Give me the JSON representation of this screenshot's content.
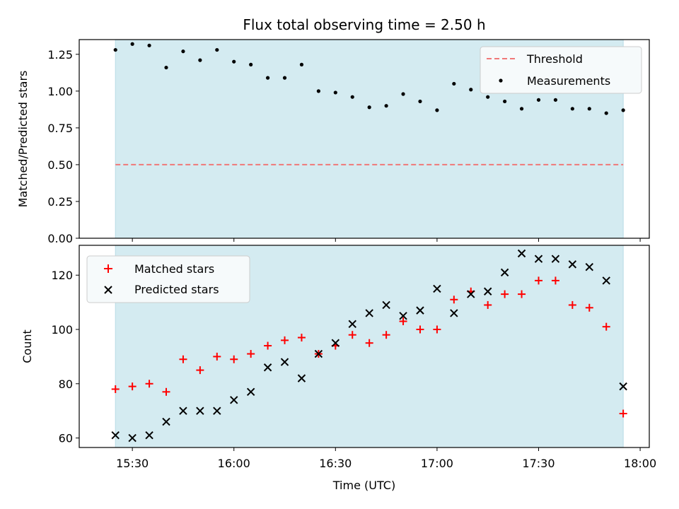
{
  "chart_data": {
    "title": "Flux total observing time = 2.50 h",
    "shade_color": "#d4ebf1",
    "x_tick_labels": [
      "15:30",
      "16:00",
      "16:30",
      "17:00",
      "17:30",
      "18:00"
    ],
    "x_tick_minutes": [
      930,
      960,
      990,
      1020,
      1050,
      1080
    ],
    "xlim": [
      914.3,
      1082.7
    ],
    "xlabel": "Time (UTC)",
    "shade_range": [
      "15:25",
      "17:55"
    ],
    "times": [
      "15:25",
      "15:30",
      "15:35",
      "15:40",
      "15:45",
      "15:50",
      "15:55",
      "16:00",
      "16:05",
      "16:10",
      "16:15",
      "16:20",
      "16:25",
      "16:30",
      "16:35",
      "16:40",
      "16:45",
      "16:50",
      "16:55",
      "17:00",
      "17:05",
      "17:10",
      "17:15",
      "17:20",
      "17:25",
      "17:30",
      "17:35",
      "17:40",
      "17:45",
      "17:50",
      "17:55"
    ],
    "top": {
      "type": "scatter",
      "ylabel": "Matched/Predicted stars",
      "ylim": [
        0,
        1.35
      ],
      "y_ticks": [
        "0.00",
        "0.25",
        "0.50",
        "0.75",
        "1.00",
        "1.25"
      ],
      "y_tick_values": [
        0,
        0.25,
        0.5,
        0.75,
        1.0,
        1.25
      ],
      "threshold": 0.5,
      "threshold_color": "#f07878",
      "legend": [
        "Threshold",
        "Measurements"
      ],
      "legend_position": "top-right",
      "measurements": [
        1.28,
        1.32,
        1.31,
        1.16,
        1.27,
        1.21,
        1.28,
        1.2,
        1.18,
        1.09,
        1.09,
        1.18,
        1.0,
        0.99,
        0.96,
        0.89,
        0.9,
        0.98,
        0.93,
        0.87,
        1.05,
        1.01,
        0.96,
        0.93,
        0.88,
        0.94,
        0.94,
        0.88,
        0.88,
        0.85,
        0.87
      ]
    },
    "bottom": {
      "type": "scatter",
      "ylabel": "Count",
      "ylim": [
        56.5,
        131
      ],
      "y_ticks": [
        "60",
        "80",
        "100",
        "120"
      ],
      "y_tick_values": [
        60,
        80,
        100,
        120
      ],
      "legend": [
        "Matched stars",
        "Predicted stars"
      ],
      "legend_position": "top-left",
      "series": [
        {
          "name": "Matched stars",
          "color": "#ff0000",
          "marker": "plus",
          "values": [
            78,
            79,
            80,
            77,
            89,
            85,
            90,
            89,
            91,
            94,
            96,
            97,
            91,
            94,
            98,
            95,
            98,
            103,
            100,
            100,
            111,
            114,
            109,
            113,
            113,
            118,
            118,
            109,
            108,
            101,
            69
          ]
        },
        {
          "name": "Predicted stars",
          "color": "#000000",
          "marker": "x",
          "values": [
            61,
            60,
            61,
            66,
            70,
            70,
            70,
            74,
            77,
            86,
            88,
            82,
            91,
            95,
            102,
            106,
            109,
            105,
            107,
            115,
            106,
            113,
            114,
            121,
            128,
            126,
            126,
            124,
            123,
            118,
            79
          ]
        }
      ]
    }
  }
}
